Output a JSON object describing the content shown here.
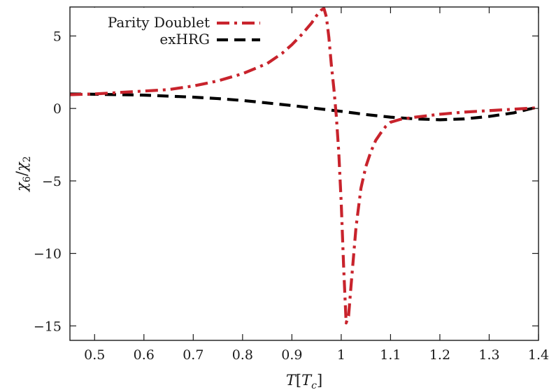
{
  "chart_data": {
    "type": "line",
    "title": "",
    "xlabel": "T[T_c]",
    "ylabel": "χ6/χ2",
    "xlim": [
      0.45,
      1.4
    ],
    "ylim": [
      -16,
      7
    ],
    "xticks": [
      0.5,
      0.6,
      0.7,
      0.8,
      0.9,
      1.0,
      1.1,
      1.2,
      1.3,
      1.4
    ],
    "xtick_labels": [
      "0.5",
      "0.6",
      "0.7",
      "0.8",
      "0.9",
      "1",
      "1.1",
      "1.2",
      "1.3",
      "1.4"
    ],
    "yticks": [
      5,
      0,
      -5,
      -10,
      -15
    ],
    "ytick_labels": [
      "5",
      "0",
      "−5",
      "−10",
      "−15"
    ],
    "grid": false,
    "legend_position": "top-left",
    "series": [
      {
        "name": "Parity Doublet",
        "color": "#c8232c",
        "dash": "dash-dot",
        "x": [
          0.45,
          0.5,
          0.55,
          0.6,
          0.65,
          0.7,
          0.75,
          0.8,
          0.85,
          0.88,
          0.9,
          0.92,
          0.94,
          0.95,
          0.96,
          0.965,
          0.97,
          0.975,
          0.98,
          0.985,
          0.99,
          0.995,
          1.0,
          1.005,
          1.01,
          1.015,
          1.02,
          1.03,
          1.04,
          1.05,
          1.06,
          1.07,
          1.08,
          1.09,
          1.1,
          1.12,
          1.15,
          1.2,
          1.25,
          1.3,
          1.35,
          1.4
        ],
        "y": [
          0.95,
          1.0,
          1.1,
          1.2,
          1.3,
          1.55,
          1.9,
          2.4,
          3.1,
          3.8,
          4.4,
          5.1,
          5.9,
          6.4,
          6.8,
          6.9,
          6.3,
          4.9,
          3.0,
          1.4,
          -0.5,
          -3.0,
          -6.5,
          -11.0,
          -14.8,
          -14.3,
          -12.2,
          -8.2,
          -5.5,
          -4.0,
          -3.0,
          -2.2,
          -1.7,
          -1.25,
          -0.95,
          -0.75,
          -0.6,
          -0.4,
          -0.25,
          -0.15,
          -0.05,
          0.05
        ]
      },
      {
        "name": "exHRG",
        "color": "#000000",
        "dash": "dashed",
        "x": [
          0.45,
          0.5,
          0.55,
          0.6,
          0.65,
          0.7,
          0.75,
          0.8,
          0.85,
          0.9,
          0.95,
          1.0,
          1.05,
          1.1,
          1.15,
          1.2,
          1.25,
          1.3,
          1.35,
          1.38,
          1.4
        ],
        "y": [
          1.0,
          0.98,
          0.95,
          0.92,
          0.85,
          0.78,
          0.68,
          0.55,
          0.38,
          0.2,
          0.0,
          -0.2,
          -0.42,
          -0.6,
          -0.72,
          -0.78,
          -0.72,
          -0.55,
          -0.3,
          -0.05,
          0.1
        ]
      }
    ]
  }
}
